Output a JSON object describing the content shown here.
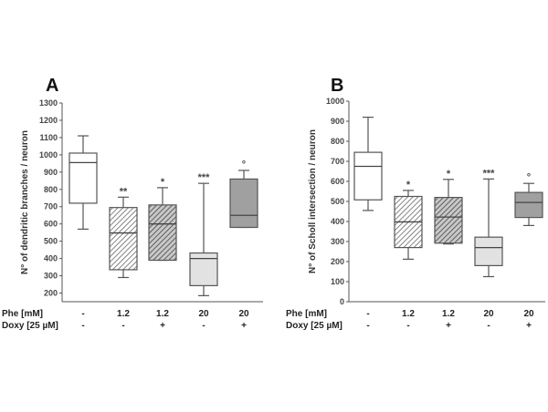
{
  "chart_data": [
    {
      "type": "boxplot",
      "panel_label": "A",
      "ylabel": "N° of dendritic branches / neuron",
      "yticks": [
        200,
        300,
        400,
        500,
        600,
        700,
        800,
        900,
        1000,
        1100,
        1200,
        1300
      ],
      "ylim": [
        150,
        1300
      ],
      "row_labels": [
        "Phe [mM]",
        "Doxy [25 µM]"
      ],
      "groups": [
        {
          "phe": "-",
          "doxy": "-",
          "whisker_low": 570,
          "q1": 720,
          "median": 955,
          "q3": 1010,
          "whisker_high": 1110,
          "significance": "",
          "fill": "#ffffff",
          "pattern": "none"
        },
        {
          "phe": "1.2",
          "doxy": "-",
          "whisker_low": 290,
          "q1": 335,
          "median": 548,
          "q3": 695,
          "whisker_high": 755,
          "significance": "**",
          "fill": "#ffffff",
          "pattern": "hatch-light"
        },
        {
          "phe": "1.2",
          "doxy": "+",
          "whisker_low": 390,
          "q1": 390,
          "median": 600,
          "q3": 710,
          "whisker_high": 810,
          "significance": "*",
          "fill": "#bbbbbb",
          "pattern": "hatch-dark"
        },
        {
          "phe": "20",
          "doxy": "-",
          "whisker_low": 185,
          "q1": 243,
          "median": 400,
          "q3": 432,
          "whisker_high": 835,
          "significance": "***",
          "fill": "#e2e2e2",
          "pattern": "dots"
        },
        {
          "phe": "20",
          "doxy": "+",
          "whisker_low": 580,
          "q1": 580,
          "median": 650,
          "q3": 860,
          "whisker_high": 910,
          "significance": "°",
          "fill": "#a0a0a0",
          "pattern": "dots"
        }
      ]
    },
    {
      "type": "boxplot",
      "panel_label": "B",
      "ylabel": "N° of Scholl intersection / neuron",
      "yticks": [
        0,
        100,
        200,
        300,
        400,
        500,
        600,
        700,
        800,
        900,
        1000
      ],
      "ylim": [
        0,
        1000
      ],
      "row_labels": [
        "Phe [mM]",
        "Doxy [25 µM]"
      ],
      "groups": [
        {
          "phe": "-",
          "doxy": "-",
          "whisker_low": 455,
          "q1": 508,
          "median": 675,
          "q3": 745,
          "whisker_high": 920,
          "significance": "",
          "fill": "#ffffff",
          "pattern": "none"
        },
        {
          "phe": "1.2",
          "doxy": "-",
          "whisker_low": 212,
          "q1": 270,
          "median": 398,
          "q3": 525,
          "whisker_high": 555,
          "significance": "*",
          "fill": "#ffffff",
          "pattern": "hatch-light"
        },
        {
          "phe": "1.2",
          "doxy": "+",
          "whisker_low": 288,
          "q1": 292,
          "median": 422,
          "q3": 520,
          "whisker_high": 610,
          "significance": "*",
          "fill": "#bbbbbb",
          "pattern": "hatch-dark"
        },
        {
          "phe": "20",
          "doxy": "-",
          "whisker_low": 125,
          "q1": 180,
          "median": 270,
          "q3": 322,
          "whisker_high": 612,
          "significance": "***",
          "fill": "#e2e2e2",
          "pattern": "dots"
        },
        {
          "phe": "20",
          "doxy": "+",
          "whisker_low": 380,
          "q1": 420,
          "median": 495,
          "q3": 545,
          "whisker_high": 590,
          "significance": "°",
          "fill": "#a0a0a0",
          "pattern": "dots"
        }
      ]
    }
  ]
}
